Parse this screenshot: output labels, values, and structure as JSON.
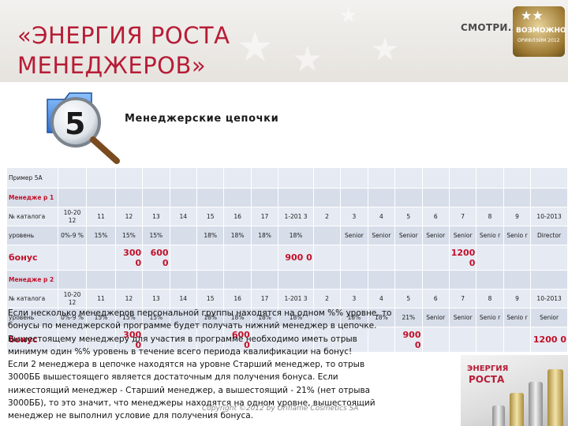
{
  "header": {
    "title_line1": "«ЭНЕРГИЯ РОСТА",
    "title_line2": "МЕНЕДЖЕРОВ»",
    "logo_smotri": "СМОТРИ...",
    "logo_badge_line1": "ВОЗМОЖНО",
    "logo_badge_line2": "ОРИФЛЭЙМ 2012"
  },
  "section": {
    "icon_number": "5",
    "title": "Менеджерские цепочки"
  },
  "table": {
    "rows": [
      [
        "Пример 5А",
        "",
        "",
        "",
        "",
        "",
        "",
        "",
        "",
        "",
        "",
        "",
        "",
        "",
        "",
        "",
        "",
        "",
        ""
      ],
      [
        "Менедже р 1",
        "",
        "",
        "",
        "",
        "",
        "",
        "",
        "",
        "",
        "",
        "",
        "",
        "",
        "",
        "",
        "",
        "",
        ""
      ],
      [
        "№ каталога",
        "10-20 12",
        "11",
        "12",
        "13",
        "14",
        "15",
        "16",
        "17",
        "1-201 3",
        "2",
        "3",
        "4",
        "5",
        "6",
        "7",
        "8",
        "9",
        "10-2013"
      ],
      [
        "уровень",
        "0%-9 %",
        "15%",
        "15%",
        "15%",
        "",
        "18%",
        "18%",
        "18%",
        "18%",
        "",
        "Senior",
        "Senior",
        "Senior",
        "Senior",
        "Senior",
        "Senio r",
        "Senio r",
        "Director"
      ],
      [
        "бонус",
        "",
        "",
        "300 0",
        "600 0",
        "",
        "",
        "",
        "",
        "900 0",
        "",
        "",
        "",
        "",
        "",
        "1200 0",
        "",
        "",
        ""
      ],
      [
        "Менедже р 2",
        "",
        "",
        "",
        "",
        "",
        "",
        "",
        "",
        "",
        "",
        "",
        "",
        "",
        "",
        "",
        "",
        "",
        ""
      ],
      [
        "№ каталога",
        "10-20 12",
        "11",
        "12",
        "13",
        "14",
        "15",
        "16",
        "17",
        "1-201 3",
        "2",
        "3",
        "4",
        "5",
        "6",
        "7",
        "8",
        "9",
        "10-2013"
      ],
      [
        "уровень",
        "0%-9 %",
        "15%",
        "15%",
        "15%",
        "",
        "18%",
        "18%",
        "18%",
        "18%",
        "",
        "18%",
        "18%",
        "21%",
        "Senior",
        "Senior",
        "Senio r",
        "Senio r",
        "Senior"
      ],
      [
        "бонус",
        "",
        "",
        "300 0",
        "",
        "",
        "",
        "600 0",
        "",
        "",
        "",
        "",
        "",
        "900 0",
        "",
        "",
        "",
        "",
        "1200 0"
      ]
    ]
  },
  "overlay_text": [
    "Если несколько менеджеров персональной группы находятся на одном %% уровне, то",
    "бонусы по менеджерской программе будет получать нижний менеджер в цепочке.",
    "Вышестоящему менеджеру для участия в программе необходимо иметь отрыв",
    "минимум один %% уровень в течение всего периода квалификации на бонус!",
    "Если 2 менеджера в цепочке находятся на уровне Старший менеджер, то отрыв",
    "3000ББ вышестоящего является достаточным для получения бонуса. Если",
    "нижестоящий менеджер - Старший менеджер, а вышестоящий - 21% (нет отрыва",
    "3000ББ), то это значит, что менеджеры находятся на одном уровне, вышестоящий",
    "менеджер не выполнил условие для получения бонуса."
  ],
  "footer": {
    "copyright": "Copyright ©2012 by Oriflame Cosmetics SA"
  },
  "promo": {
    "line1": "ЭНЕРГИЯ",
    "line2": "РОСТА"
  },
  "colors": {
    "accent": "#b71c36",
    "table_cell": "#d7dde9",
    "bonus_red": "#c2102a"
  }
}
